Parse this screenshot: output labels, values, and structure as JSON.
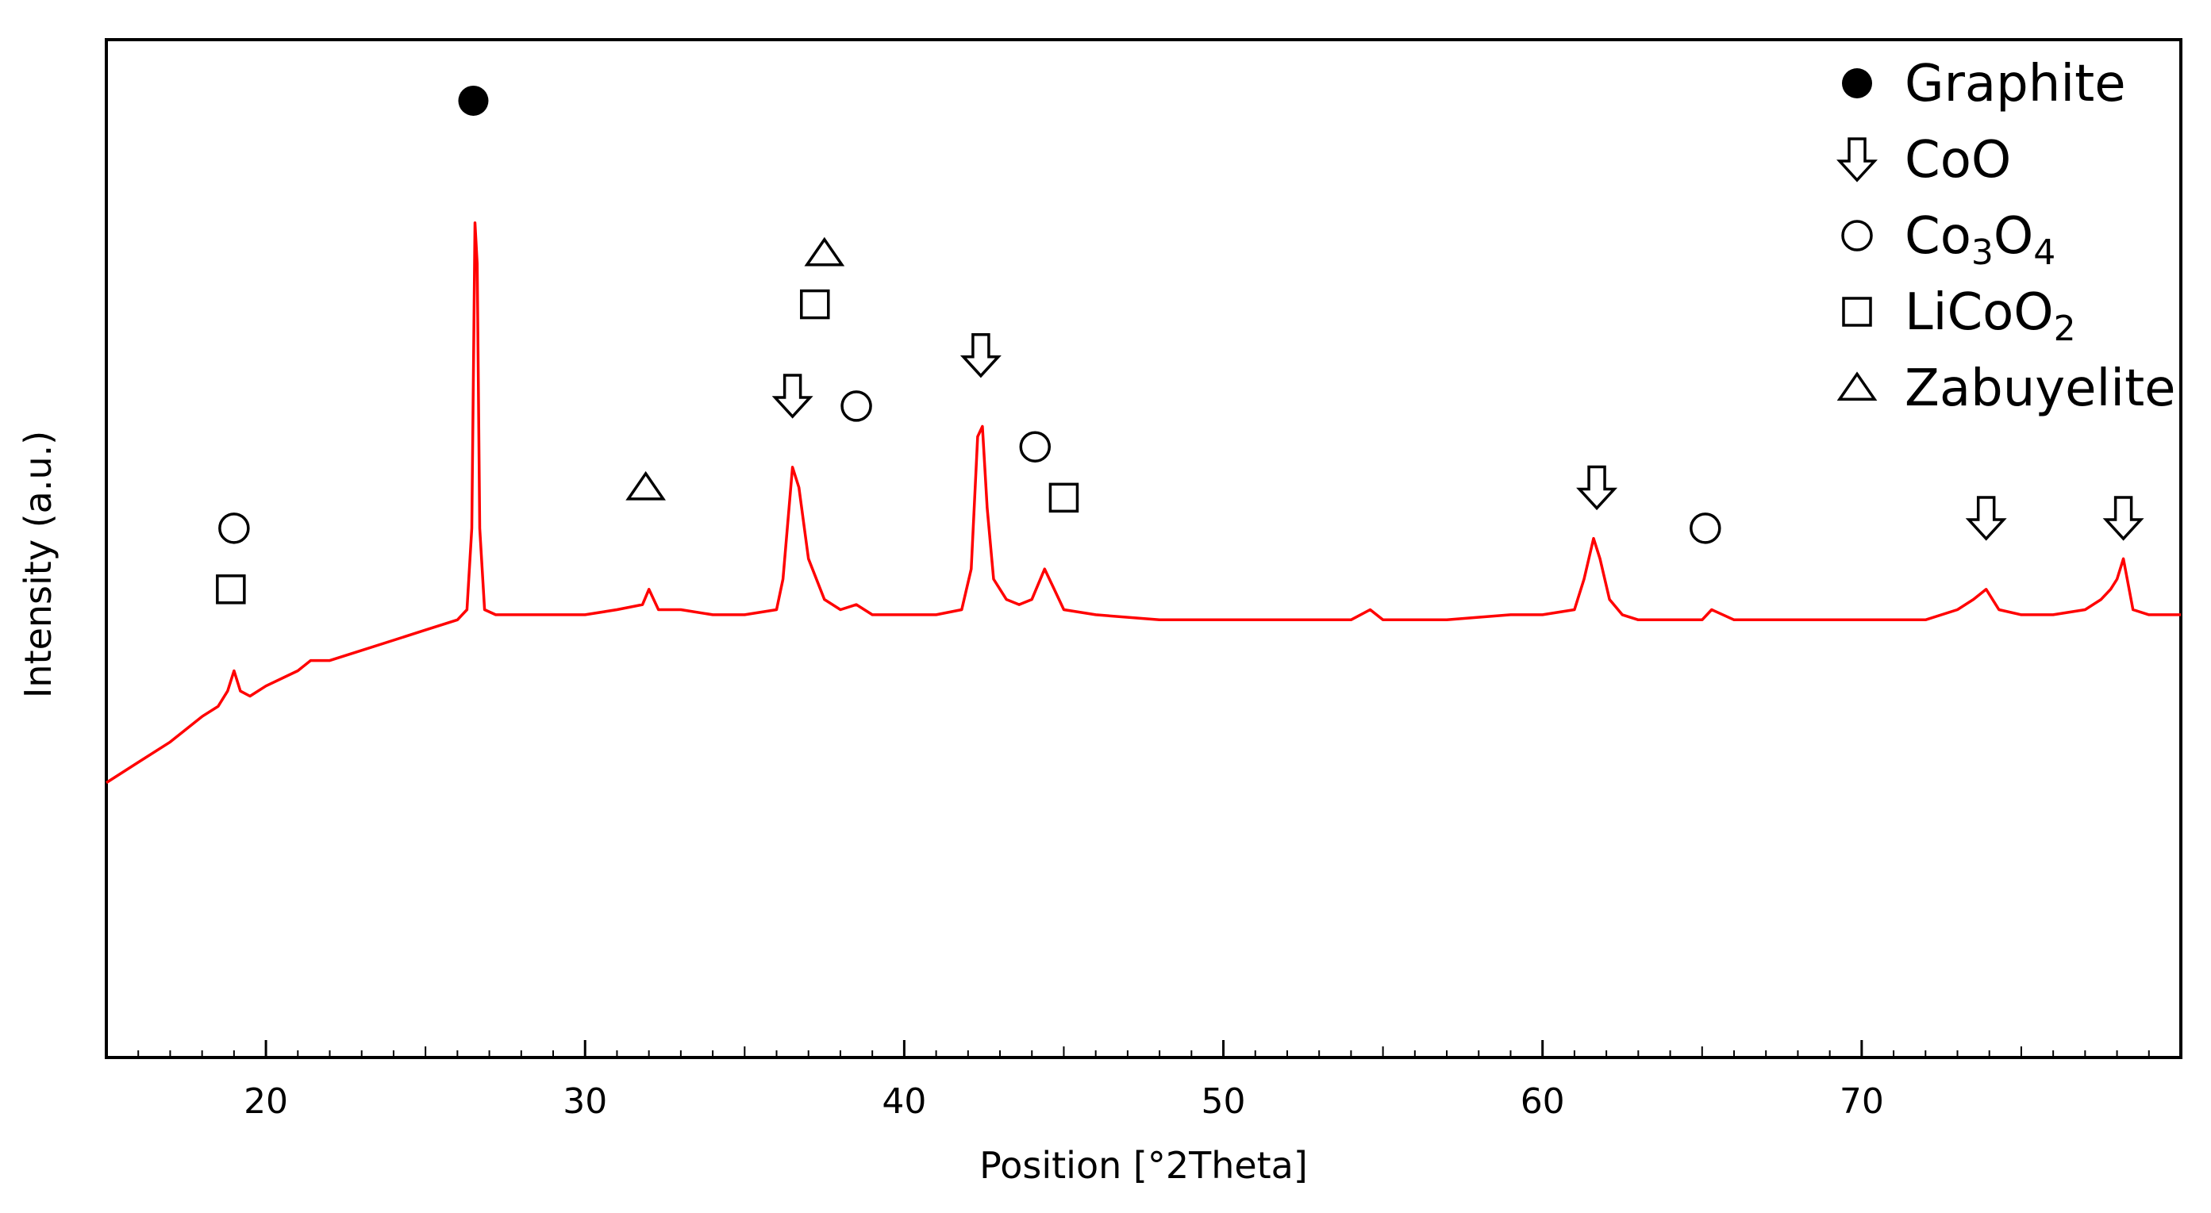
{
  "chart_data": {
    "type": "line",
    "xlabel": "Position [°2Theta]",
    "ylabel": "Intensity (a.u.)",
    "xlim": [
      15,
      80
    ],
    "ylim": [
      0,
      100
    ],
    "x_ticks": [
      20,
      30,
      40,
      50,
      60,
      70
    ],
    "y_ticks_shown": false,
    "grid": false,
    "legend_position": "top-right",
    "series": [
      {
        "color": "#ff0000",
        "x": [
          15,
          16,
          17,
          18,
          18.5,
          18.8,
          19.0,
          19.2,
          19.5,
          20,
          21,
          21.4,
          22,
          23,
          24,
          25,
          26,
          26.3,
          26.45,
          26.55,
          26.62,
          26.7,
          26.85,
          27.2,
          28,
          29,
          30,
          31,
          31.8,
          32.0,
          32.3,
          33,
          34,
          35,
          36,
          36.2,
          36.5,
          36.7,
          37.0,
          37.5,
          38,
          38.5,
          39,
          40,
          41,
          41.8,
          42.1,
          42.3,
          42.45,
          42.6,
          42.8,
          43.2,
          43.6,
          44.0,
          44.4,
          44.7,
          45,
          46,
          48,
          50,
          52,
          54,
          54.6,
          55,
          57,
          59,
          60,
          61,
          61.3,
          61.6,
          61.8,
          62.1,
          62.5,
          63,
          65,
          65.3,
          66,
          68,
          70,
          72,
          73,
          73.5,
          73.9,
          74.3,
          75,
          76,
          77,
          77.5,
          77.8,
          78.0,
          78.2,
          78.5,
          79,
          80
        ],
        "y": [
          27,
          29,
          31,
          33.5,
          34.5,
          36,
          38,
          36,
          35.5,
          36.5,
          38,
          39,
          39,
          40,
          41,
          42,
          43,
          44,
          52,
          82,
          78,
          52,
          44,
          43.5,
          43.5,
          43.5,
          43.5,
          44,
          44.5,
          46,
          44,
          44,
          43.5,
          43.5,
          44,
          47,
          58,
          56,
          49,
          45,
          44,
          44.5,
          43.5,
          43.5,
          43.5,
          44,
          48,
          61,
          62,
          54,
          47,
          45,
          44.5,
          45,
          48,
          46,
          44,
          43.5,
          43,
          43,
          43,
          43,
          44,
          43,
          43,
          43.5,
          43.5,
          44,
          47,
          51,
          49,
          45,
          43.5,
          43,
          43,
          44,
          43,
          43,
          43,
          43,
          44,
          45,
          46,
          44,
          43.5,
          43.5,
          44,
          45,
          46,
          47,
          49,
          44,
          43.5,
          43.5
        ]
      }
    ],
    "legend": [
      {
        "marker": "filled-circle",
        "label": "Graphite"
      },
      {
        "marker": "down-arrow",
        "label": "CoO"
      },
      {
        "marker": "open-circle",
        "label_main": "Co",
        "sub1": "3",
        "label_mid": "O",
        "sub2": "4"
      },
      {
        "marker": "open-square",
        "label_main": "LiCoO",
        "sub": "2"
      },
      {
        "marker": "open-triangle",
        "label": "Zabuyelite"
      }
    ],
    "peak_markers": [
      {
        "phase": "Graphite",
        "marker": "filled-circle",
        "x": 26.5,
        "y": 94
      },
      {
        "phase": "CoO",
        "marker": "down-arrow",
        "x": 36.5,
        "y": 65
      },
      {
        "phase": "CoO",
        "marker": "down-arrow",
        "x": 42.4,
        "y": 69
      },
      {
        "phase": "CoO",
        "marker": "down-arrow",
        "x": 61.7,
        "y": 56
      },
      {
        "phase": "CoO",
        "marker": "down-arrow",
        "x": 73.9,
        "y": 53
      },
      {
        "phase": "CoO",
        "marker": "down-arrow",
        "x": 78.2,
        "y": 53
      },
      {
        "phase": "Co3O4",
        "marker": "open-circle",
        "x": 19.0,
        "y": 52
      },
      {
        "phase": "Co3O4",
        "marker": "open-circle",
        "x": 38.5,
        "y": 64
      },
      {
        "phase": "Co3O4",
        "marker": "open-circle",
        "x": 44.1,
        "y": 60
      },
      {
        "phase": "Co3O4",
        "marker": "open-circle",
        "x": 65.1,
        "y": 52
      },
      {
        "phase": "LiCoO2",
        "marker": "open-square",
        "x": 18.9,
        "y": 46
      },
      {
        "phase": "LiCoO2",
        "marker": "open-square",
        "x": 37.2,
        "y": 74
      },
      {
        "phase": "LiCoO2",
        "marker": "open-square",
        "x": 45.0,
        "y": 55
      },
      {
        "phase": "Zabuyelite",
        "marker": "open-triangle",
        "x": 31.9,
        "y": 56
      },
      {
        "phase": "Zabuyelite",
        "marker": "open-triangle",
        "x": 37.5,
        "y": 79
      }
    ]
  }
}
